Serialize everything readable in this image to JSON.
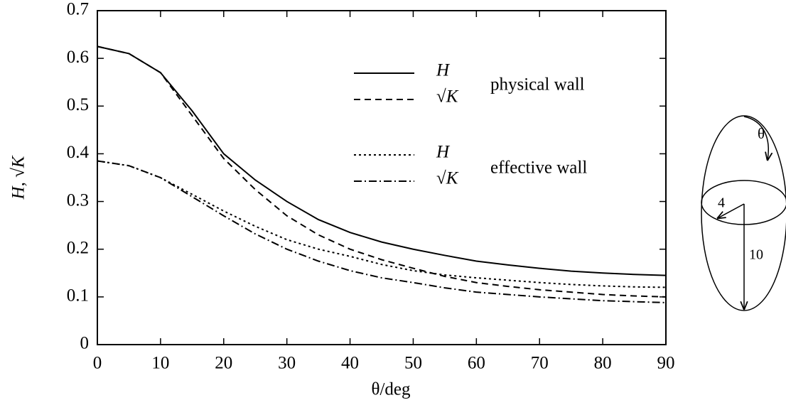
{
  "chart_data": {
    "type": "line",
    "x_label": "θ/deg",
    "y_label": "H, √K",
    "x": [
      0,
      5,
      10,
      15,
      20,
      25,
      30,
      35,
      40,
      45,
      50,
      55,
      60,
      65,
      70,
      75,
      80,
      85,
      90
    ],
    "series": [
      {
        "name": "H",
        "group": "physical wall",
        "color": "#000000",
        "dash": "none",
        "values": [
          0.625,
          0.61,
          0.57,
          0.49,
          0.4,
          0.345,
          0.3,
          0.262,
          0.235,
          0.215,
          0.2,
          0.187,
          0.175,
          0.167,
          0.16,
          0.154,
          0.15,
          0.147,
          0.145
        ]
      },
      {
        "name": "√K",
        "group": "physical wall",
        "color": "#000000",
        "dash": "9,6",
        "values": [
          0.625,
          0.61,
          0.57,
          0.48,
          0.39,
          0.325,
          0.27,
          0.23,
          0.2,
          0.178,
          0.16,
          0.143,
          0.13,
          0.122,
          0.115,
          0.11,
          0.105,
          0.102,
          0.1
        ]
      },
      {
        "name": "H",
        "group": "effective wall",
        "color": "#000000",
        "dash": "3,4",
        "values": [
          0.385,
          0.375,
          0.35,
          0.315,
          0.28,
          0.248,
          0.22,
          0.2,
          0.185,
          0.168,
          0.155,
          0.146,
          0.14,
          0.135,
          0.13,
          0.126,
          0.123,
          0.121,
          0.12
        ]
      },
      {
        "name": "√K",
        "group": "effective wall",
        "color": "#000000",
        "dash": "11,4,2,4",
        "values": [
          0.385,
          0.375,
          0.35,
          0.31,
          0.27,
          0.232,
          0.2,
          0.175,
          0.155,
          0.14,
          0.13,
          0.119,
          0.11,
          0.105,
          0.1,
          0.096,
          0.092,
          0.09,
          0.088
        ]
      }
    ],
    "legend_groups": [
      "physical wall",
      "effective wall"
    ],
    "xlim": [
      0,
      90
    ],
    "xticks": [
      0,
      10,
      20,
      30,
      40,
      50,
      60,
      70,
      80,
      90
    ],
    "ylim": [
      0,
      0.7
    ],
    "yticks": [
      0,
      0.1,
      0.2,
      0.3,
      0.4,
      0.5,
      0.6,
      0.7
    ],
    "inset": {
      "angle_label": "θ",
      "radius_label": "4",
      "height_label": "10"
    }
  }
}
